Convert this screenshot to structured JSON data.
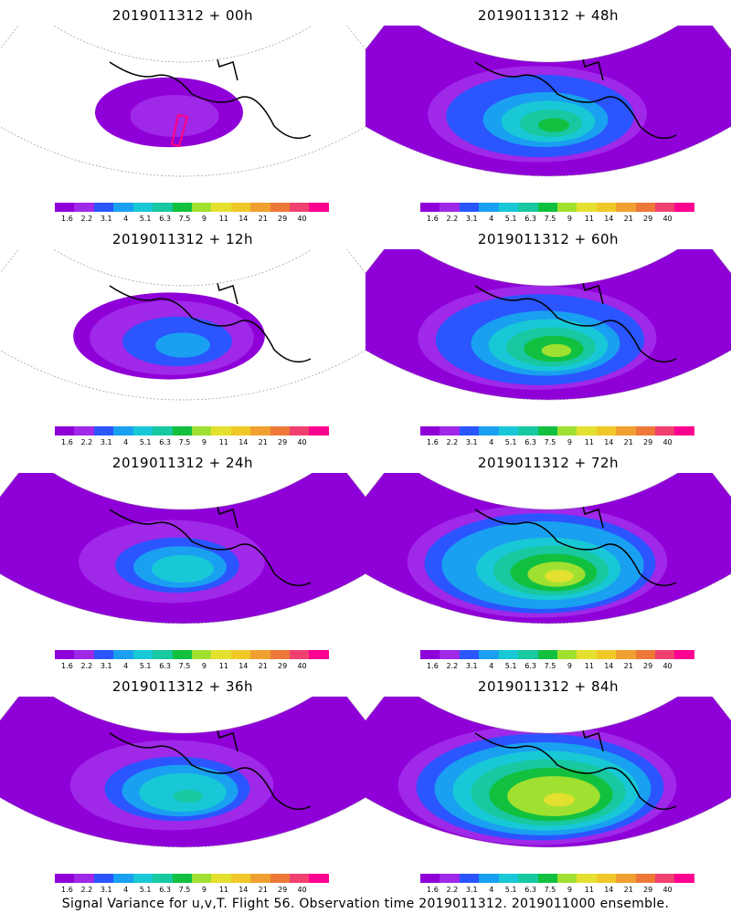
{
  "colorbar": {
    "colors": [
      "#8f00d8",
      "#a028e8",
      "#2a55ff",
      "#1aa0f0",
      "#19c8d6",
      "#18c8a0",
      "#12c040",
      "#a0e030",
      "#e4e030",
      "#f0c828",
      "#f0a030",
      "#ee7838",
      "#f04070",
      "#ff0090"
    ],
    "ticks": [
      "1.6",
      "2.2",
      "3.1",
      "4",
      "5.1",
      "6.3",
      "7.5",
      "9",
      "11",
      "14",
      "21",
      "29",
      "40"
    ]
  },
  "panels": [
    {
      "title": "2019011312 + 00h",
      "intensity": 0.15,
      "box": true
    },
    {
      "title": "2019011312 + 48h",
      "intensity": 0.55,
      "box": false
    },
    {
      "title": "2019011312 + 12h",
      "intensity": 0.32,
      "box": false
    },
    {
      "title": "2019011312 + 60h",
      "intensity": 0.62,
      "box": false
    },
    {
      "title": "2019011312 + 24h",
      "intensity": 0.42,
      "box": false
    },
    {
      "title": "2019011312 + 72h",
      "intensity": 0.7,
      "box": false
    },
    {
      "title": "2019011312 + 36h",
      "intensity": 0.48,
      "box": false
    },
    {
      "title": "2019011312 + 84h",
      "intensity": 0.78,
      "box": false
    }
  ],
  "footer": "Signal Variance for u,v,T. Flight 56. Observation time 2019011312. 2019011000 ensemble."
}
